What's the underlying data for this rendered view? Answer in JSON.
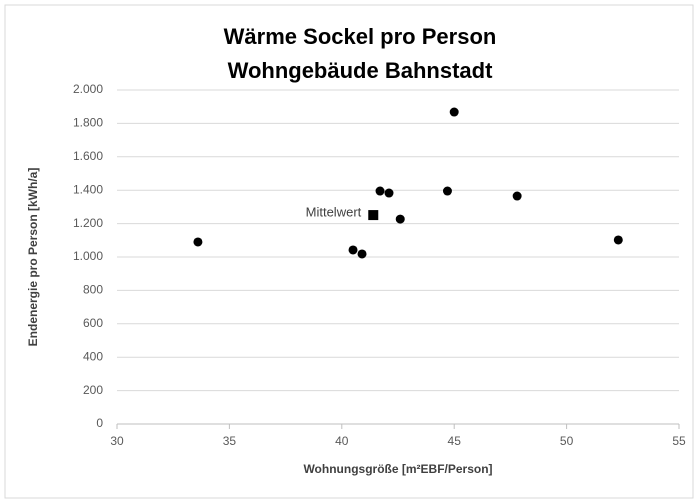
{
  "chart_data": {
    "type": "scatter",
    "title": [
      "Wärme Sockel pro Person",
      "Wohngebäude Bahnstadt"
    ],
    "x_label": "Wohnungsgröße [m²EBF/Person]",
    "y_label": "Endenergie pro Person [kWh/a]",
    "xlim": [
      30,
      55
    ],
    "xticks": [
      30,
      35,
      40,
      45,
      50,
      55
    ],
    "ylim": [
      0,
      2000
    ],
    "yticks": [
      0,
      200,
      400,
      600,
      800,
      {
        "value": 1000,
        "label": "1.000"
      },
      {
        "value": 1200,
        "label": "1.200"
      },
      {
        "value": 1400,
        "label": "1.400"
      },
      {
        "value": 1600,
        "label": "1.600"
      },
      {
        "value": 1800,
        "label": "1.800"
      },
      {
        "value": 2000,
        "label": "2.000"
      }
    ],
    "grid": true,
    "color": "#000000",
    "x": [
      33.6,
      40.5,
      40.9,
      41.7,
      42.1,
      42.6,
      44.7,
      45.0,
      47.8,
      52.3
    ],
    "values": [
      1090,
      1042,
      1018,
      1395,
      1383,
      1227,
      1395,
      1868,
      1365,
      1102
    ],
    "mean": {
      "label": "Mittelwert",
      "x": 41.4,
      "y": 1251
    }
  }
}
